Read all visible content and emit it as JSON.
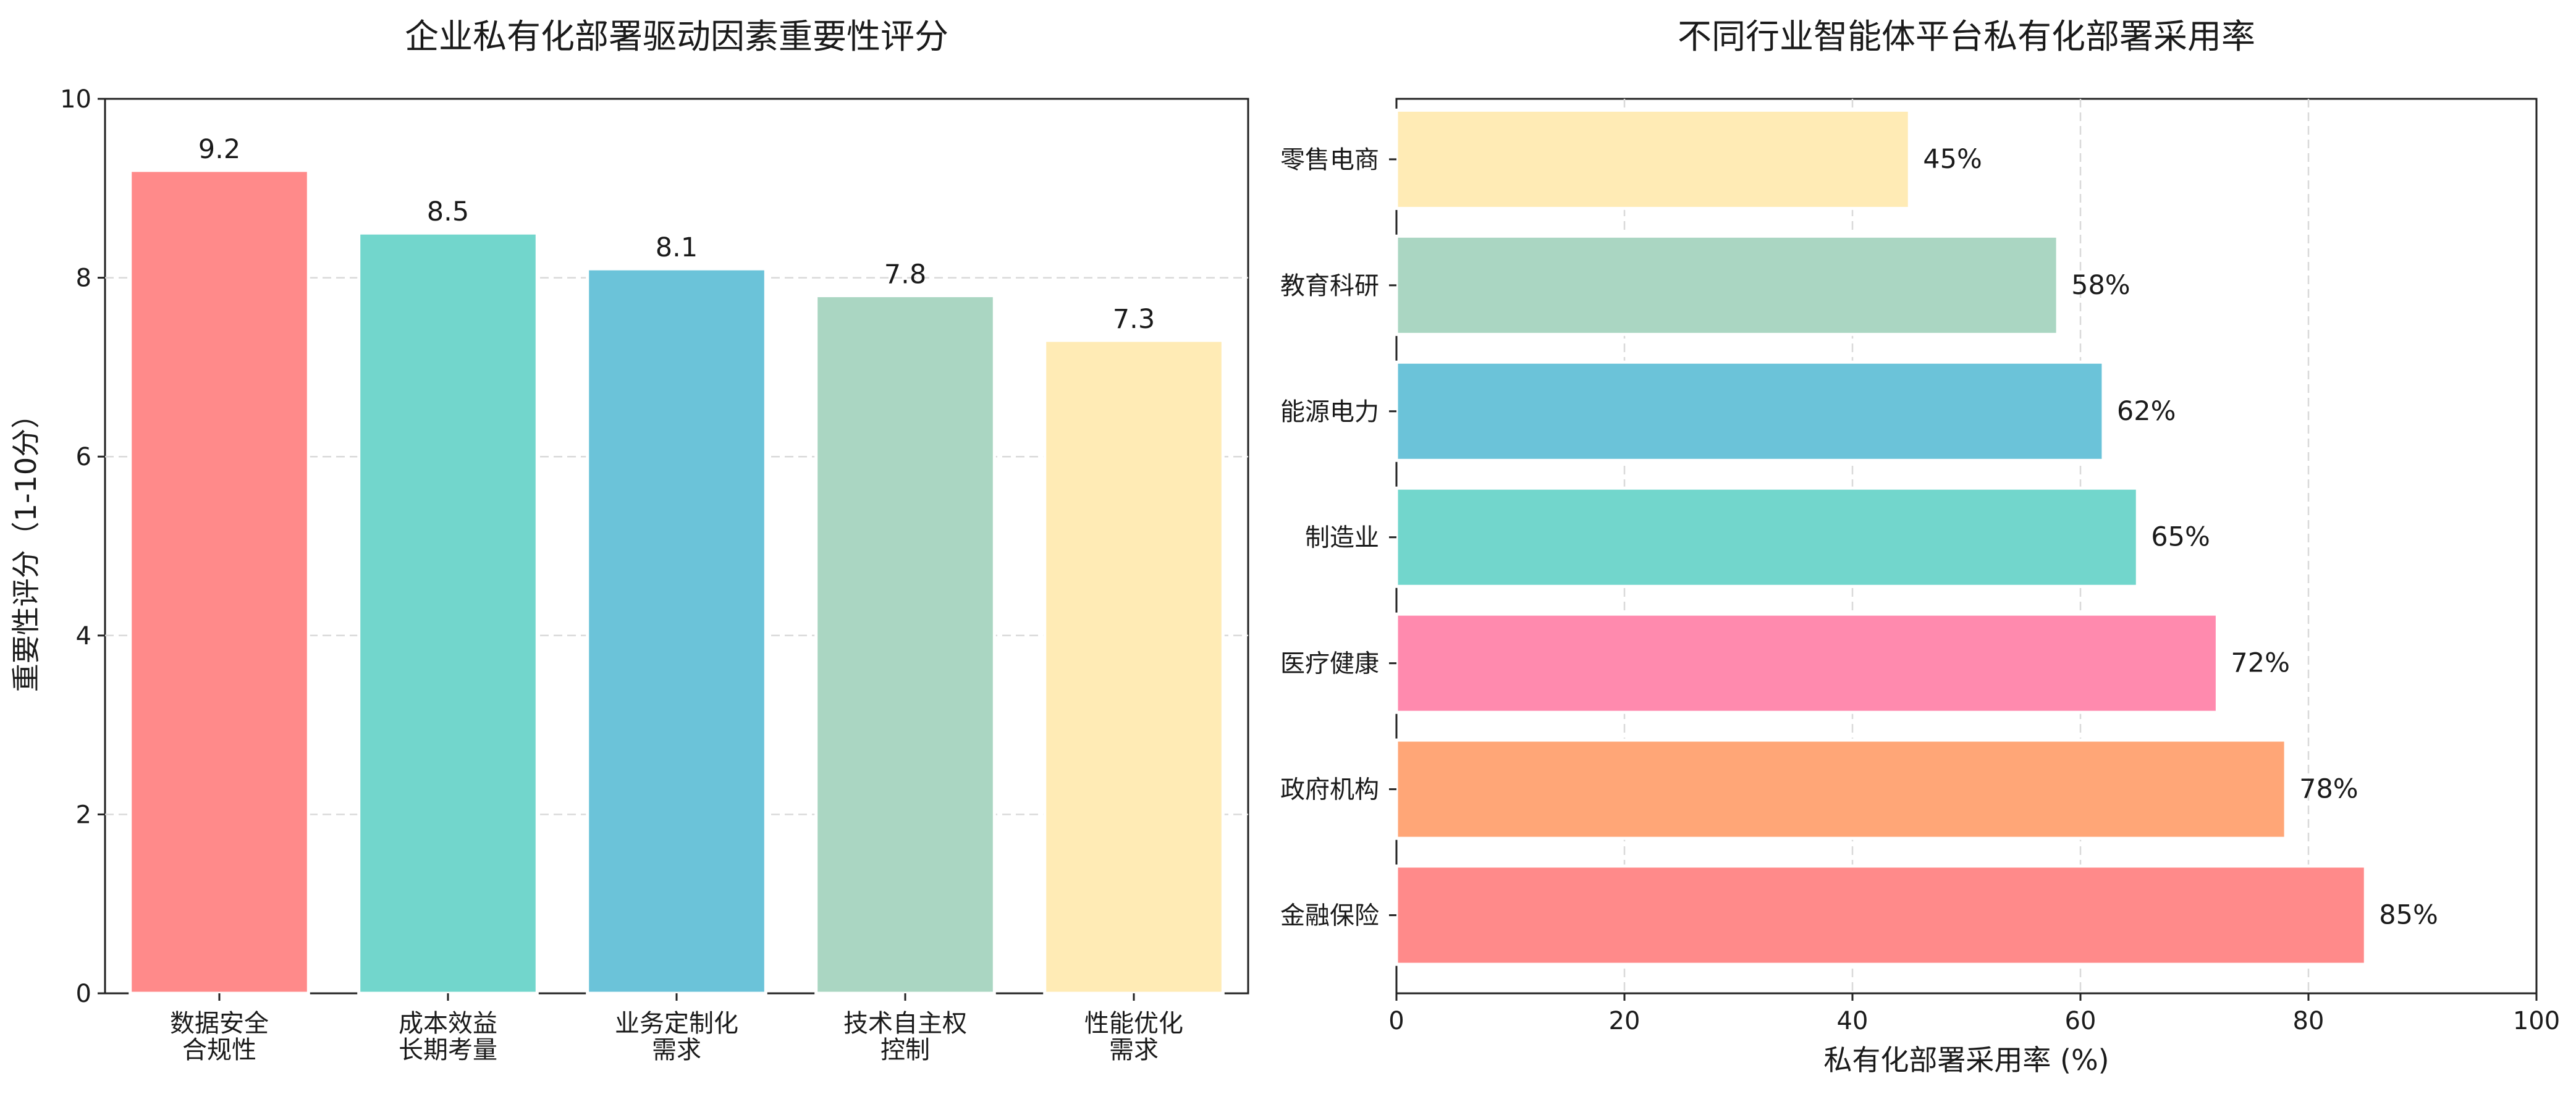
{
  "chart_data": [
    {
      "type": "bar",
      "title": "企业私有化部署驱动因素重要性评分",
      "xlabel": "",
      "ylabel": "重要性评分（1-10分）",
      "ylim": [
        0,
        10
      ],
      "yticks": [
        0,
        2,
        4,
        6,
        8,
        10
      ],
      "grid": true,
      "categories": [
        "数据安全\n合规性",
        "成本效益\n长期考量",
        "业务定制化\n需求",
        "技术自主权\n控制",
        "性能优化\n需求"
      ],
      "values": [
        9.2,
        8.5,
        8.1,
        7.8,
        7.3
      ],
      "value_labels": [
        "9.2",
        "8.5",
        "8.1",
        "7.8",
        "7.3"
      ],
      "colors": [
        "#ff8a8a",
        "#72d6cc",
        "#6bc3d9",
        "#aad6c2",
        "#ffebb5"
      ]
    },
    {
      "type": "barh",
      "title": "不同行业智能体平台私有化部署采用率",
      "xlabel": "私有化部署采用率 (%)",
      "ylabel": "",
      "xlim": [
        0,
        100
      ],
      "xticks": [
        0,
        20,
        40,
        60,
        80,
        100
      ],
      "grid": true,
      "categories": [
        "金融保险",
        "政府机构",
        "医疗健康",
        "制造业",
        "能源电力",
        "教育科研",
        "零售电商"
      ],
      "values": [
        85,
        78,
        72,
        65,
        62,
        58,
        45
      ],
      "value_labels": [
        "85%",
        "78%",
        "72%",
        "65%",
        "62%",
        "58%",
        "45%"
      ],
      "colors": [
        "#ff8a8a",
        "#ffa677",
        "#ff8aae",
        "#72d6cc",
        "#6bc3d9",
        "#aad6c2",
        "#ffebb5"
      ]
    }
  ]
}
